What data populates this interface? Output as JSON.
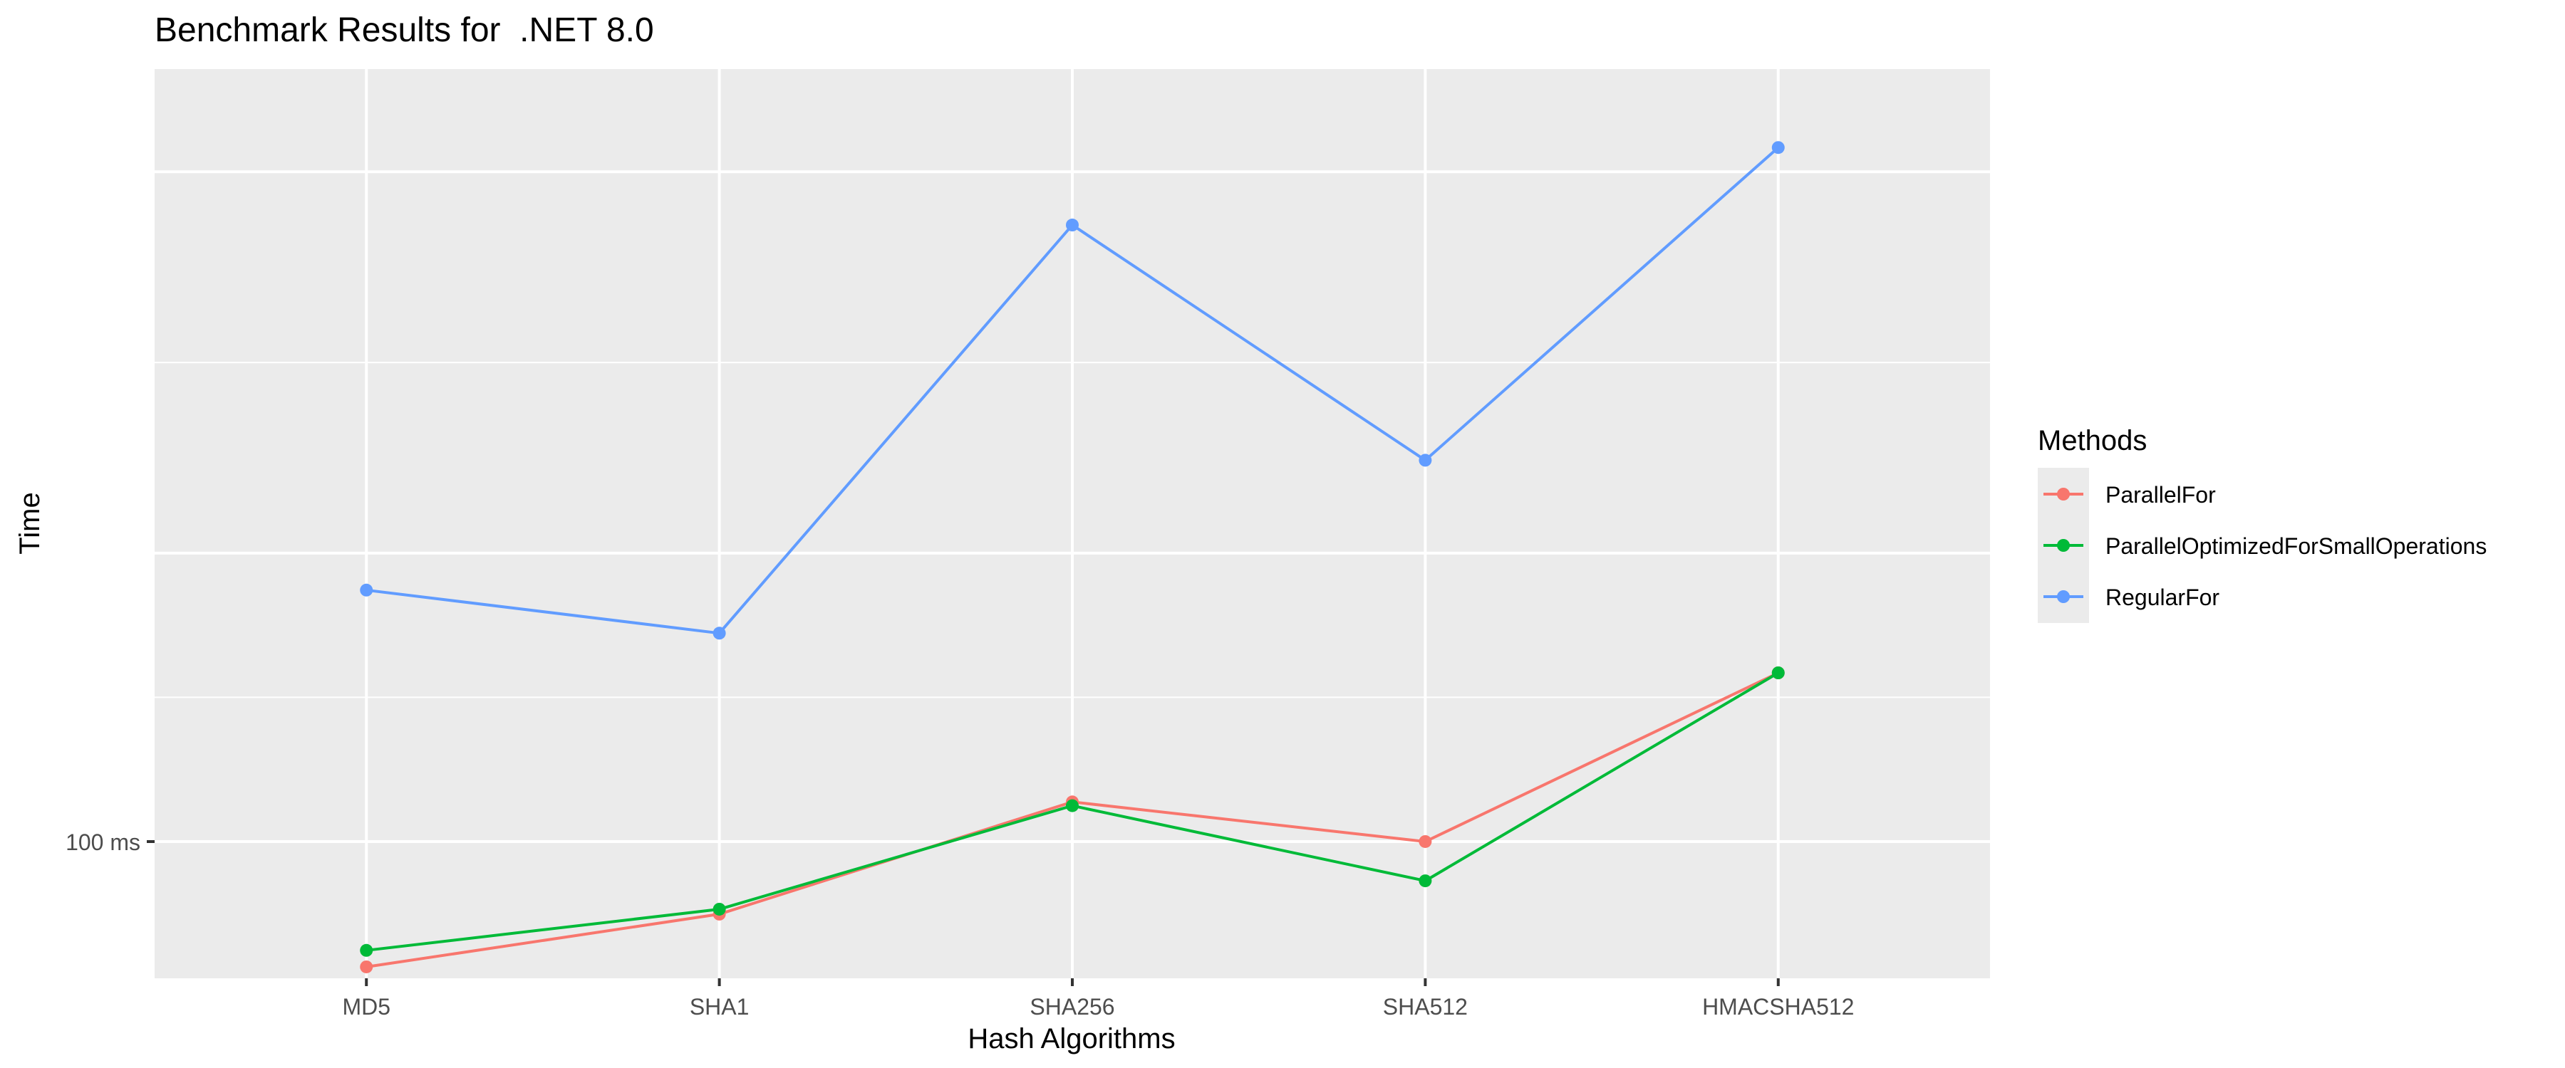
{
  "chart_data": {
    "type": "line",
    "title": "Benchmark Results for  .NET 8.0",
    "xlabel": "Hash Algorithms",
    "ylabel": "Time",
    "categories": [
      "MD5",
      "SHA1",
      "SHA256",
      "SHA512",
      "HMACSHA512"
    ],
    "y_scale": "log10",
    "ylim": [
      72,
      640
    ],
    "y_tick_labels": [
      {
        "value": 100,
        "label": "100 ms"
      }
    ],
    "grid": true,
    "legend": {
      "title": "Methods",
      "position": "right"
    },
    "series": [
      {
        "name": "ParallelFor",
        "color": "#F8766D",
        "values": [
          74,
          84,
          110,
          100,
          150
        ]
      },
      {
        "name": "ParallelOptimizedForSmallOperations",
        "color": "#00BA38",
        "values": [
          77,
          85,
          109,
          91,
          150
        ]
      },
      {
        "name": "RegularFor",
        "color": "#619CFF",
        "values": [
          183,
          165,
          440,
          250,
          530
        ]
      }
    ]
  }
}
